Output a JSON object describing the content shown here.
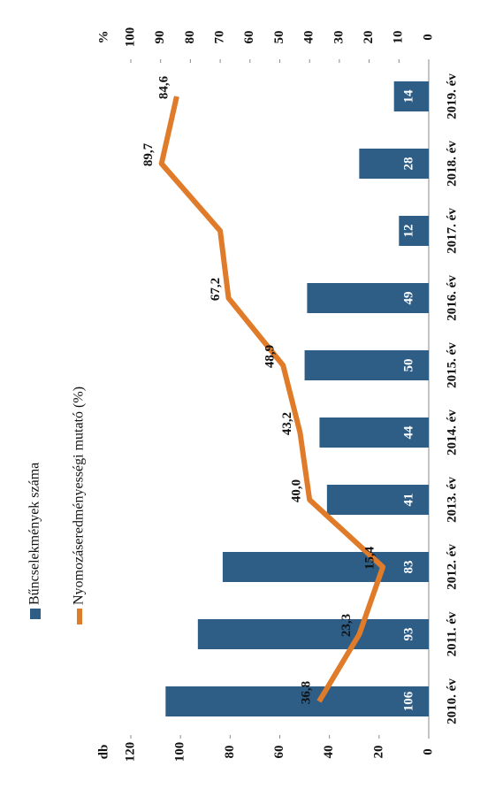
{
  "chart_data": {
    "type": "bar-line",
    "categories": [
      "2010. év",
      "2011. év",
      "2012. év",
      "2013. év",
      "2014. év",
      "2015. év",
      "2016. év",
      "2017. év",
      "2018. év",
      "2019. év"
    ],
    "series": [
      {
        "name": "Bűncselekmények száma",
        "color": "#2e5d86",
        "type": "bar",
        "values": [
          106,
          93,
          83,
          41,
          44,
          50,
          49,
          12,
          28,
          14
        ]
      },
      {
        "name": "Nyomozáseredményességi mutató (%)",
        "color": "#e07b2a",
        "type": "line",
        "axis": "y2",
        "values": [
          36.8,
          23.3,
          15.4,
          40.0,
          43.2,
          48.9,
          67.2,
          70,
          89.7,
          84.6
        ],
        "value_labels": [
          "36,8",
          "23,3",
          "15,4",
          "40,0",
          "43,2",
          "48,9",
          "67,2",
          null,
          "89,7",
          "84,6"
        ]
      }
    ],
    "ylabel": "db",
    "y2label": "%",
    "ylim": [
      0,
      120
    ],
    "yticks": [
      0,
      20,
      40,
      60,
      80,
      100,
      120
    ],
    "y2lim": [
      0,
      100
    ],
    "y2ticks": [
      0,
      10,
      20,
      30,
      40,
      50,
      60,
      70,
      80,
      90,
      100
    ]
  }
}
